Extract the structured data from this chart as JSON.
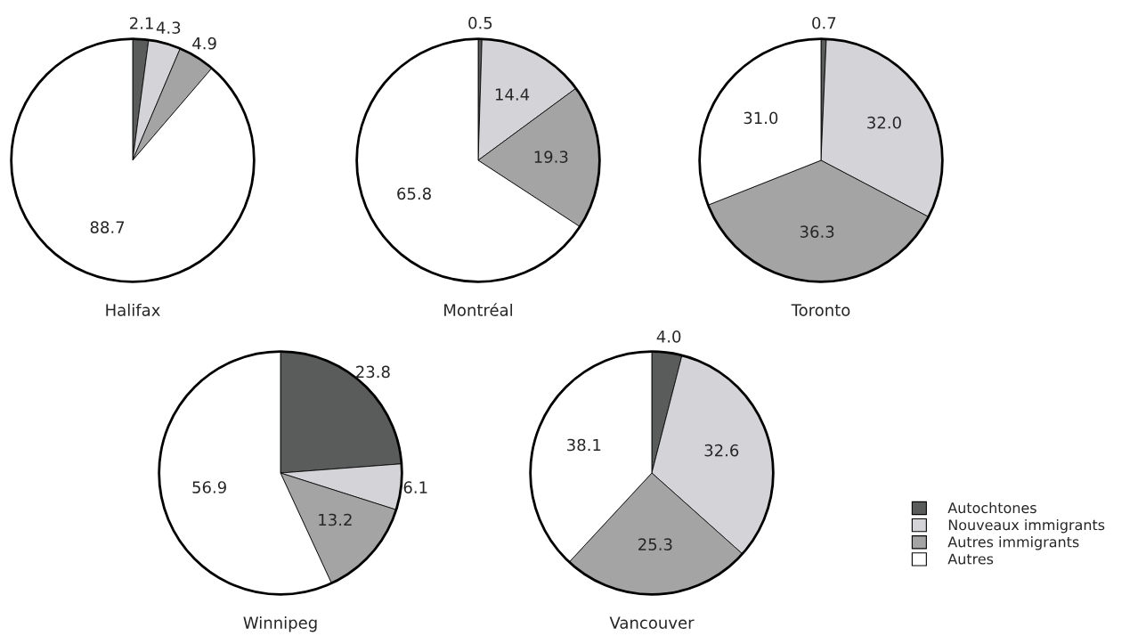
{
  "chart_data": [
    {
      "type": "pie",
      "title": "Halifax",
      "categories": [
        "Autochtones",
        "Nouveaux immigrants",
        "Autres immigrants",
        "Autres"
      ],
      "values": [
        2.1,
        4.3,
        4.9,
        88.7
      ],
      "value_labels": [
        "2.1",
        "4.3",
        "4.9",
        "88.7"
      ],
      "colors": [
        "#5a5c5c",
        "#d4d4d8",
        "#a4a4a4",
        "#ffffff"
      ],
      "legend": "right"
    },
    {
      "type": "pie",
      "title": "Montréal",
      "categories": [
        null,
        null,
        null,
        null
      ],
      "values": [
        0.5,
        14.4,
        19.3,
        65.8
      ],
      "value_labels": [
        "0.5",
        "14.4",
        "19.3",
        "65.8"
      ],
      "colors": [
        "#5a5c5c",
        "#d4d4d8",
        "#a4a4a4",
        "#ffffff"
      ]
    },
    {
      "type": "pie",
      "title": "Toronto",
      "categories": [
        null,
        null,
        null,
        null
      ],
      "values": [
        0.7,
        32.0,
        36.3,
        31.0
      ],
      "value_labels": [
        "0.7",
        "32.0",
        "36.3",
        "31.0"
      ],
      "colors": [
        "#5a5c5c",
        "#d4d4d8",
        "#a4a4a4",
        "#ffffff"
      ]
    },
    {
      "type": "pie",
      "title": "Winnipeg",
      "categories": [
        null,
        null,
        null,
        null
      ],
      "values": [
        23.8,
        6.1,
        13.2,
        56.9
      ],
      "value_labels": [
        "23.8",
        "6.1",
        "13.2",
        "56.9"
      ],
      "colors": [
        "#5a5c5c",
        "#d4d4d8",
        "#a4a4a4",
        "#ffffff"
      ]
    },
    {
      "type": "pie",
      "title": "Vancouver",
      "categories": [
        null,
        null,
        null,
        null
      ],
      "values": [
        4.0,
        32.6,
        25.3,
        38.1
      ],
      "value_labels": [
        "4.0",
        "32.6",
        "25.3",
        "38.1"
      ],
      "colors": [
        "#5a5c5c",
        "#d4d4d8",
        "#a4a4a4",
        "#ffffff"
      ]
    }
  ]
}
